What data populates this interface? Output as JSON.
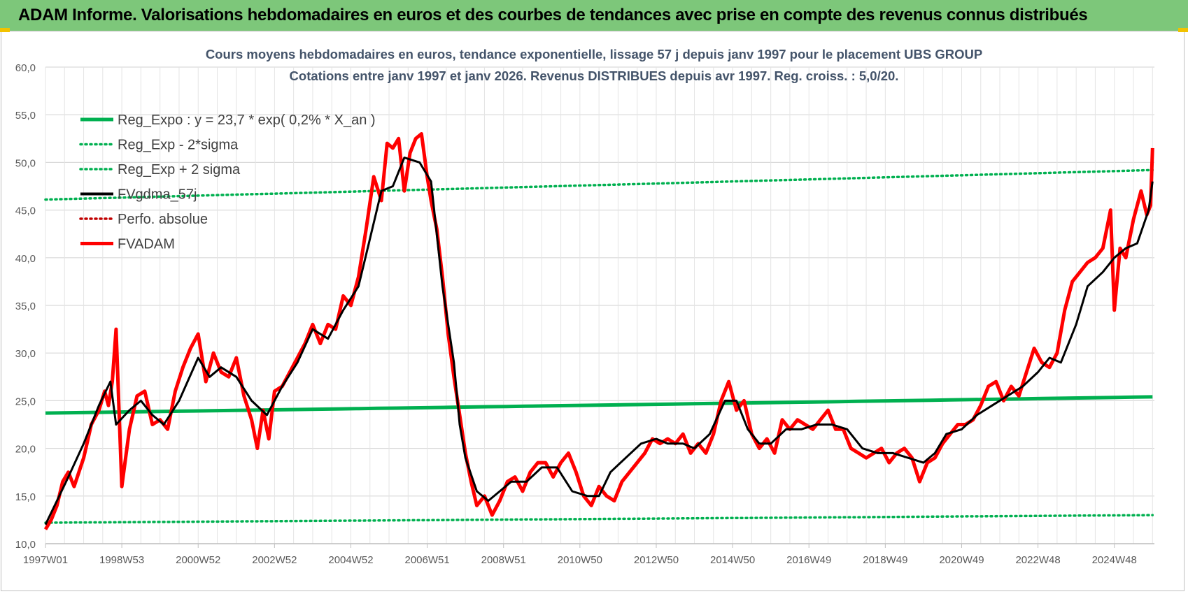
{
  "header": {
    "banner_title": "ADAM Informe. Valorisations hebdomadaires en euros et des courbes de tendances avec prise en compte des revenus connus distribués"
  },
  "colors": {
    "banner_bg": "#7dc77a",
    "reg_expo": "#00b050",
    "fvadam": "#ff0000",
    "fvgdma": "#000000",
    "perfo": "#c00000",
    "title_text": "#404060"
  },
  "chart_data": {
    "type": "line",
    "title_line1": "Cours moyens hebdomadaires en euros, tendance exponentielle, lissage 57 j depuis janv 1997  pour le placement UBS GROUP",
    "title_line2": "Cotations entre janv 1997 et janv 2026. Revenus DISTRIBUES depuis avr 1997.  Reg. croiss. : 5,0/20.",
    "ylim": [
      10,
      60
    ],
    "y_ticks": [
      "10,0",
      "15,0",
      "20,0",
      "25,0",
      "30,0",
      "35,0",
      "40,0",
      "45,0",
      "50,0",
      "55,0",
      "60,0"
    ],
    "x_range": [
      1997.0,
      2026.05
    ],
    "x_ticks": [
      {
        "label": "1997W01",
        "x": 1997.0
      },
      {
        "label": "1998W53",
        "x": 1999.0
      },
      {
        "label": "2000W52",
        "x": 2001.0
      },
      {
        "label": "2002W52",
        "x": 2003.0
      },
      {
        "label": "2004W52",
        "x": 2005.0
      },
      {
        "label": "2006W51",
        "x": 2007.0
      },
      {
        "label": "2008W51",
        "x": 2009.0
      },
      {
        "label": "2010W50",
        "x": 2011.0
      },
      {
        "label": "2012W50",
        "x": 2013.0
      },
      {
        "label": "2014W50",
        "x": 2015.0
      },
      {
        "label": "2016W49",
        "x": 2017.0
      },
      {
        "label": "2018W49",
        "x": 2019.0
      },
      {
        "label": "2020W49",
        "x": 2021.0
      },
      {
        "label": "2022W48",
        "x": 2023.0
      },
      {
        "label": "2024W48",
        "x": 2025.0
      }
    ],
    "grid": true,
    "legend_position": "top-left",
    "series": [
      {
        "name": "Reg_Expo : y = 23,7 * exp( 0,2% *  X_an )",
        "style": "solid-thick",
        "color": "#00b050",
        "x": [
          1997.0,
          2026.0
        ],
        "y": [
          23.7,
          25.4
        ]
      },
      {
        "name": "Reg_Exp - 2*sigma",
        "style": "dotted",
        "color": "#00b050",
        "x": [
          1997.0,
          2026.0
        ],
        "y": [
          12.2,
          13.0
        ]
      },
      {
        "name": "Reg_Exp + 2 sigma",
        "style": "dotted",
        "color": "#00b050",
        "x": [
          1997.0,
          2026.0
        ],
        "y": [
          46.1,
          49.2
        ]
      },
      {
        "name": "FVgdma_57j",
        "style": "solid",
        "color": "#000000",
        "x": [
          1997.0,
          1997.3,
          1997.6,
          1998.0,
          1998.4,
          1998.7,
          1998.85,
          1999.2,
          1999.5,
          1999.8,
          2000.1,
          2000.5,
          2001.0,
          2001.3,
          2001.6,
          2002.0,
          2002.4,
          2002.8,
          2003.2,
          2003.6,
          2004.0,
          2004.4,
          2004.8,
          2005.2,
          2005.5,
          2005.8,
          2006.1,
          2006.4,
          2006.8,
          2007.1,
          2007.4,
          2007.7,
          2007.85,
          2008.0,
          2008.3,
          2008.6,
          2008.9,
          2009.2,
          2009.6,
          2010.0,
          2010.4,
          2010.8,
          2011.2,
          2011.5,
          2011.8,
          2012.2,
          2012.6,
          2013.0,
          2013.3,
          2013.7,
          2014.0,
          2014.4,
          2014.8,
          2015.1,
          2015.4,
          2015.7,
          2016.0,
          2016.4,
          2016.8,
          2017.2,
          2017.6,
          2018.0,
          2018.4,
          2018.8,
          2019.2,
          2019.6,
          2020.0,
          2020.3,
          2020.6,
          2021.0,
          2021.4,
          2021.8,
          2022.2,
          2022.6,
          2023.0,
          2023.3,
          2023.6,
          2024.0,
          2024.3,
          2024.7,
          2025.0,
          2025.3,
          2025.6,
          2025.9,
          2026.0
        ],
        "y": [
          12.0,
          14.5,
          17.0,
          20.5,
          24.5,
          27.0,
          22.5,
          24.0,
          25.0,
          23.5,
          22.5,
          25.0,
          29.5,
          27.5,
          28.5,
          27.5,
          25.0,
          23.5,
          26.5,
          29.0,
          32.5,
          31.5,
          34.5,
          37.0,
          42.0,
          47.0,
          47.5,
          50.5,
          50.0,
          48.0,
          37.0,
          29.0,
          22.5,
          19.0,
          15.5,
          14.5,
          15.5,
          16.5,
          16.5,
          18.0,
          18.0,
          15.5,
          15.0,
          15.0,
          17.5,
          19.0,
          20.5,
          21.0,
          20.5,
          20.5,
          20.0,
          21.5,
          25.0,
          25.0,
          22.0,
          20.5,
          20.5,
          22.0,
          22.0,
          22.5,
          22.5,
          22.0,
          20.0,
          19.5,
          19.5,
          19.0,
          18.5,
          19.5,
          21.5,
          22.0,
          23.5,
          24.5,
          25.5,
          26.5,
          28.0,
          29.5,
          29.0,
          33.0,
          37.0,
          38.5,
          40.0,
          41.0,
          41.5,
          45.0,
          48.0
        ]
      },
      {
        "name": "Perfo. absolue",
        "style": "dotted",
        "color": "#c00000",
        "x": [],
        "y": []
      },
      {
        "name": "FVADAM",
        "style": "solid-thick",
        "color": "#ff0000",
        "x": [
          1997.0,
          1997.15,
          1997.3,
          1997.45,
          1997.6,
          1997.75,
          1998.0,
          1998.2,
          1998.4,
          1998.55,
          1998.65,
          1998.75,
          1998.85,
          1999.0,
          1999.2,
          1999.4,
          1999.6,
          1999.8,
          2000.0,
          2000.2,
          2000.4,
          2000.6,
          2000.8,
          2001.0,
          2001.2,
          2001.4,
          2001.6,
          2001.8,
          2002.0,
          2002.2,
          2002.4,
          2002.55,
          2002.7,
          2002.85,
          2003.0,
          2003.2,
          2003.4,
          2003.6,
          2003.8,
          2004.0,
          2004.2,
          2004.4,
          2004.6,
          2004.8,
          2005.0,
          2005.2,
          2005.4,
          2005.6,
          2005.8,
          2005.95,
          2006.1,
          2006.25,
          2006.4,
          2006.55,
          2006.7,
          2006.85,
          2007.0,
          2007.1,
          2007.25,
          2007.4,
          2007.55,
          2007.7,
          2007.85,
          2008.0,
          2008.15,
          2008.3,
          2008.5,
          2008.7,
          2008.9,
          2009.1,
          2009.3,
          2009.5,
          2009.7,
          2009.9,
          2010.1,
          2010.3,
          2010.5,
          2010.7,
          2010.9,
          2011.1,
          2011.3,
          2011.5,
          2011.7,
          2011.9,
          2012.1,
          2012.3,
          2012.5,
          2012.7,
          2012.9,
          2013.1,
          2013.3,
          2013.5,
          2013.7,
          2013.9,
          2014.1,
          2014.3,
          2014.5,
          2014.7,
          2014.9,
          2015.1,
          2015.3,
          2015.5,
          2015.7,
          2015.9,
          2016.1,
          2016.3,
          2016.5,
          2016.7,
          2016.9,
          2017.1,
          2017.3,
          2017.5,
          2017.7,
          2017.9,
          2018.1,
          2018.3,
          2018.5,
          2018.7,
          2018.9,
          2019.1,
          2019.3,
          2019.5,
          2019.7,
          2019.9,
          2020.1,
          2020.3,
          2020.5,
          2020.7,
          2020.9,
          2021.1,
          2021.3,
          2021.5,
          2021.7,
          2021.9,
          2022.1,
          2022.3,
          2022.5,
          2022.7,
          2022.9,
          2023.1,
          2023.3,
          2023.5,
          2023.7,
          2023.9,
          2024.1,
          2024.3,
          2024.5,
          2024.7,
          2024.9,
          2025.0,
          2025.15,
          2025.3,
          2025.5,
          2025.7,
          2025.85,
          2025.95,
          2026.0
        ],
        "y": [
          11.5,
          12.5,
          14.0,
          16.5,
          17.5,
          16.0,
          19.0,
          22.5,
          24.0,
          26.0,
          24.5,
          27.0,
          32.5,
          16.0,
          22.0,
          25.5,
          26.0,
          22.5,
          23.0,
          22.0,
          26.0,
          28.5,
          30.5,
          32.0,
          27.0,
          30.0,
          28.0,
          27.5,
          29.5,
          25.5,
          23.0,
          20.0,
          24.0,
          21.0,
          26.0,
          26.5,
          28.0,
          29.5,
          31.0,
          33.0,
          31.0,
          33.0,
          32.5,
          36.0,
          35.0,
          38.0,
          43.0,
          48.5,
          46.0,
          52.0,
          51.5,
          52.5,
          47.0,
          51.0,
          52.5,
          53.0,
          48.5,
          46.0,
          43.0,
          38.0,
          32.0,
          27.5,
          23.5,
          19.5,
          16.5,
          14.0,
          15.0,
          13.0,
          14.5,
          16.5,
          17.0,
          15.5,
          17.5,
          18.5,
          18.5,
          17.0,
          18.5,
          19.5,
          17.5,
          15.0,
          14.0,
          16.0,
          15.0,
          14.5,
          16.5,
          17.5,
          18.5,
          19.5,
          21.0,
          20.5,
          21.0,
          20.5,
          21.5,
          19.5,
          20.5,
          19.5,
          21.5,
          25.0,
          27.0,
          24.0,
          25.0,
          21.5,
          20.0,
          21.0,
          19.5,
          23.0,
          22.0,
          23.0,
          22.5,
          22.0,
          23.0,
          24.0,
          22.0,
          22.0,
          20.0,
          19.5,
          19.0,
          19.5,
          20.0,
          18.5,
          19.5,
          20.0,
          19.0,
          16.5,
          18.5,
          19.0,
          20.5,
          21.5,
          22.5,
          22.5,
          23.0,
          24.5,
          26.5,
          27.0,
          25.0,
          26.5,
          25.5,
          28.0,
          30.5,
          29.0,
          28.5,
          30.0,
          34.5,
          37.5,
          38.5,
          39.5,
          40.0,
          41.0,
          45.0,
          34.5,
          41.0,
          40.0,
          44.0,
          47.0,
          44.5,
          45.5,
          51.5
        ]
      }
    ]
  }
}
